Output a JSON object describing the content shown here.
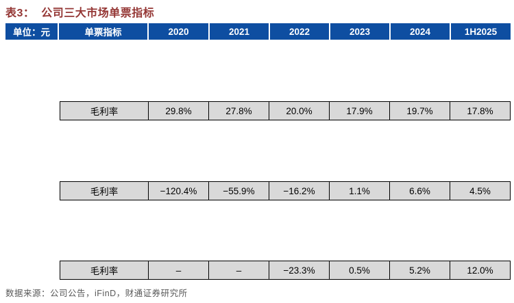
{
  "title": "表3：  公司三大市场单票指标",
  "table": {
    "header": [
      "单位：元",
      "单票指标",
      "2020",
      "2021",
      "2022",
      "2023",
      "2024",
      "1H2025"
    ],
    "rows": [
      {
        "label": "毛利率",
        "values": [
          "29.8%",
          "27.8%",
          "20.0%",
          "17.9%",
          "19.7%",
          "17.8%"
        ]
      },
      {
        "label": "毛利率",
        "values": [
          "−120.4%",
          "−55.9%",
          "−16.2%",
          "1.1%",
          "6.6%",
          "4.5%"
        ]
      },
      {
        "label": "毛利率",
        "values": [
          "–",
          "–",
          "−23.3%",
          "0.5%",
          "5.2%",
          "12.0%"
        ]
      }
    ]
  },
  "footer": "数据来源：公司公告，iFinD，财通证券研究所",
  "colors": {
    "title_text": "#943634",
    "header_bg": "#0e4ea1",
    "header_text": "#ffffff",
    "row_bg": "#d9d9d9",
    "row_text": "#000000",
    "border": "#000000",
    "footer_text": "#595959"
  }
}
